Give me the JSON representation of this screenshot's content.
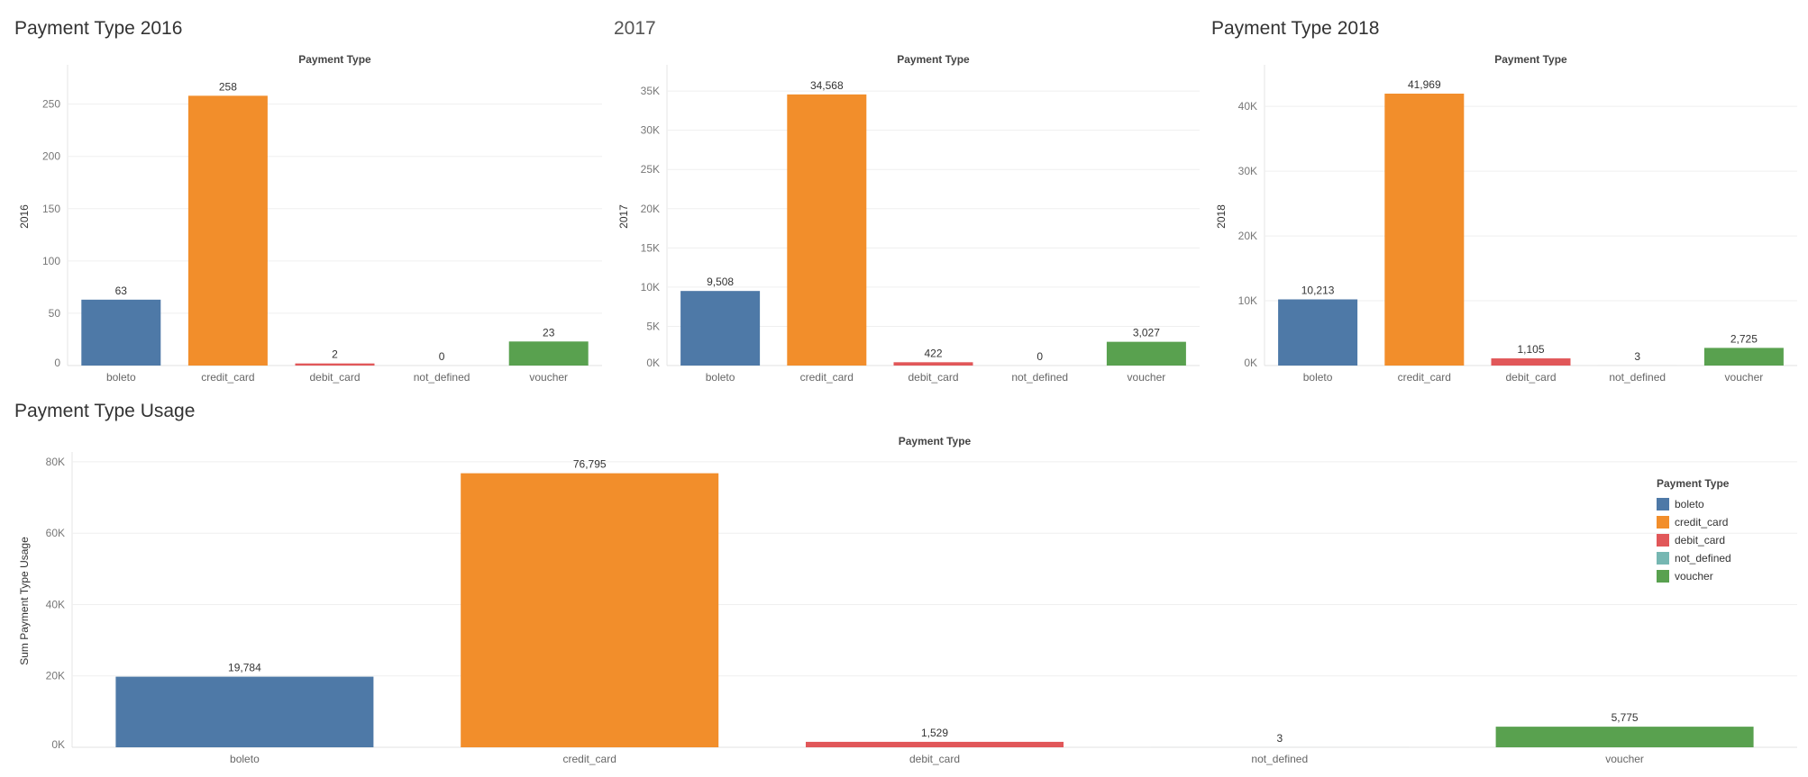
{
  "colors": {
    "boleto": "#4e79a7",
    "credit_card": "#f28e2b",
    "debit_card": "#e15759",
    "not_defined": "#76b7b2",
    "voucher": "#59a14f"
  },
  "chart_data": [
    {
      "type": "bar",
      "title": "Payment Type 2016",
      "xlabel": "Payment Type",
      "ylabel": "2016",
      "categories": [
        "boleto",
        "credit_card",
        "debit_card",
        "not_defined",
        "voucher"
      ],
      "values": [
        63,
        258,
        2,
        0,
        23
      ],
      "value_labels": [
        "63",
        "258",
        "2",
        "0",
        "23"
      ],
      "ylim": [
        0,
        285
      ],
      "yticks": [
        0,
        50,
        100,
        150,
        200,
        250
      ],
      "ytick_labels": [
        "0",
        "50",
        "100",
        "150",
        "200",
        "250"
      ]
    },
    {
      "type": "bar",
      "title": "2017",
      "xlabel": "Payment Type",
      "ylabel": "2017",
      "categories": [
        "boleto",
        "credit_card",
        "debit_card",
        "not_defined",
        "voucher"
      ],
      "values": [
        9508,
        34568,
        422,
        0,
        3027
      ],
      "value_labels": [
        "9,508",
        "34,568",
        "422",
        "0",
        "3,027"
      ],
      "ylim": [
        0,
        38000
      ],
      "yticks": [
        0,
        5000,
        10000,
        15000,
        20000,
        25000,
        30000,
        35000
      ],
      "ytick_labels": [
        "0K",
        "5K",
        "10K",
        "15K",
        "20K",
        "25K",
        "30K",
        "35K"
      ]
    },
    {
      "type": "bar",
      "title": "Payment Type 2018",
      "xlabel": "Payment Type",
      "ylabel": "2018",
      "categories": [
        "boleto",
        "credit_card",
        "debit_card",
        "not_defined",
        "voucher"
      ],
      "values": [
        10213,
        41969,
        1105,
        3,
        2725
      ],
      "value_labels": [
        "10,213",
        "41,969",
        "1,105",
        "3",
        "2,725"
      ],
      "ylim": [
        0,
        46000
      ],
      "yticks": [
        0,
        10000,
        20000,
        30000,
        40000
      ],
      "ytick_labels": [
        "0K",
        "10K",
        "20K",
        "30K",
        "40K"
      ]
    },
    {
      "type": "bar",
      "title": "Payment Type Usage",
      "xlabel": "Payment Type",
      "ylabel": "Sum Payment Type Usage",
      "categories": [
        "boleto",
        "credit_card",
        "debit_card",
        "not_defined",
        "voucher"
      ],
      "values": [
        19784,
        76795,
        1529,
        3,
        5775
      ],
      "value_labels": [
        "19,784",
        "76,795",
        "1,529",
        "3",
        "5,775"
      ],
      "ylim": [
        0,
        82000
      ],
      "yticks": [
        0,
        20000,
        40000,
        60000,
        80000
      ],
      "ytick_labels": [
        "0K",
        "20K",
        "40K",
        "60K",
        "80K"
      ],
      "legend": {
        "title": "Payment Type",
        "position": "top-right",
        "items": [
          "boleto",
          "credit_card",
          "debit_card",
          "not_defined",
          "voucher"
        ]
      }
    }
  ]
}
